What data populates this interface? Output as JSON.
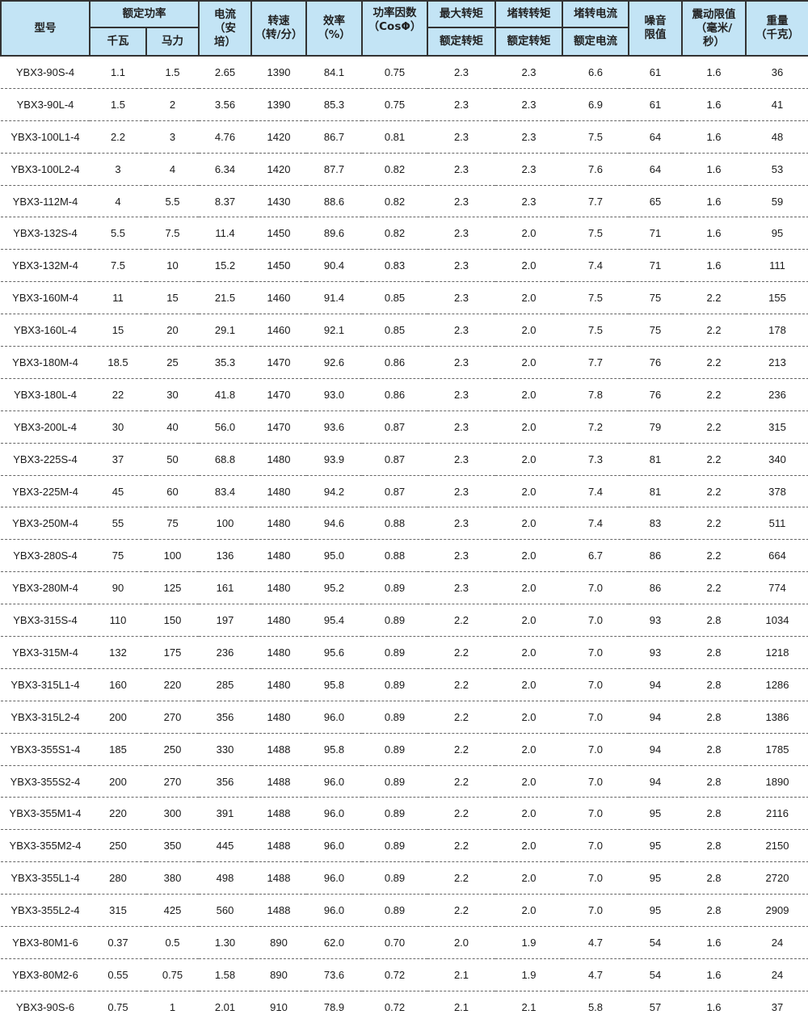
{
  "header": {
    "model": "型号",
    "rated_power": "额定功率",
    "kw": "千瓦",
    "hp": "马力",
    "current": "电流\n（安\n培）",
    "speed": "转速\n（转/分）",
    "efficiency": "效率\n（%）",
    "power_factor": "功率因数\n（CosΦ）",
    "max_torque": "最大转矩",
    "stall_torque": "堵转转矩",
    "stall_current": "堵转电流",
    "rated_torque_1": "额定转矩",
    "rated_torque_2": "额定转矩",
    "rated_current": "额定电流",
    "noise": "噪音\n限值",
    "vibration": "震动限值\n（毫米/\n秒）",
    "weight": "重量\n（千克）"
  },
  "rows": [
    [
      "YBX3-90S-4",
      "1.1",
      "1.5",
      "2.65",
      "1390",
      "84.1",
      "0.75",
      "2.3",
      "2.3",
      "6.6",
      "61",
      "1.6",
      "36"
    ],
    [
      "YBX3-90L-4",
      "1.5",
      "2",
      "3.56",
      "1390",
      "85.3",
      "0.75",
      "2.3",
      "2.3",
      "6.9",
      "61",
      "1.6",
      "41"
    ],
    [
      "YBX3-100L1-4",
      "2.2",
      "3",
      "4.76",
      "1420",
      "86.7",
      "0.81",
      "2.3",
      "2.3",
      "7.5",
      "64",
      "1.6",
      "48"
    ],
    [
      "YBX3-100L2-4",
      "3",
      "4",
      "6.34",
      "1420",
      "87.7",
      "0.82",
      "2.3",
      "2.3",
      "7.6",
      "64",
      "1.6",
      "53"
    ],
    [
      "YBX3-112M-4",
      "4",
      "5.5",
      "8.37",
      "1430",
      "88.6",
      "0.82",
      "2.3",
      "2.3",
      "7.7",
      "65",
      "1.6",
      "59"
    ],
    [
      "YBX3-132S-4",
      "5.5",
      "7.5",
      "11.4",
      "1450",
      "89.6",
      "0.82",
      "2.3",
      "2.0",
      "7.5",
      "71",
      "1.6",
      "95"
    ],
    [
      "YBX3-132M-4",
      "7.5",
      "10",
      "15.2",
      "1450",
      "90.4",
      "0.83",
      "2.3",
      "2.0",
      "7.4",
      "71",
      "1.6",
      "111"
    ],
    [
      "YBX3-160M-4",
      "11",
      "15",
      "21.5",
      "1460",
      "91.4",
      "0.85",
      "2.3",
      "2.0",
      "7.5",
      "75",
      "2.2",
      "155"
    ],
    [
      "YBX3-160L-4",
      "15",
      "20",
      "29.1",
      "1460",
      "92.1",
      "0.85",
      "2.3",
      "2.0",
      "7.5",
      "75",
      "2.2",
      "178"
    ],
    [
      "YBX3-180M-4",
      "18.5",
      "25",
      "35.3",
      "1470",
      "92.6",
      "0.86",
      "2.3",
      "2.0",
      "7.7",
      "76",
      "2.2",
      "213"
    ],
    [
      "YBX3-180L-4",
      "22",
      "30",
      "41.8",
      "1470",
      "93.0",
      "0.86",
      "2.3",
      "2.0",
      "7.8",
      "76",
      "2.2",
      "236"
    ],
    [
      "YBX3-200L-4",
      "30",
      "40",
      "56.0",
      "1470",
      "93.6",
      "0.87",
      "2.3",
      "2.0",
      "7.2",
      "79",
      "2.2",
      "315"
    ],
    [
      "YBX3-225S-4",
      "37",
      "50",
      "68.8",
      "1480",
      "93.9",
      "0.87",
      "2.3",
      "2.0",
      "7.3",
      "81",
      "2.2",
      "340"
    ],
    [
      "YBX3-225M-4",
      "45",
      "60",
      "83.4",
      "1480",
      "94.2",
      "0.87",
      "2.3",
      "2.0",
      "7.4",
      "81",
      "2.2",
      "378"
    ],
    [
      "YBX3-250M-4",
      "55",
      "75",
      "100",
      "1480",
      "94.6",
      "0.88",
      "2.3",
      "2.0",
      "7.4",
      "83",
      "2.2",
      "511"
    ],
    [
      "YBX3-280S-4",
      "75",
      "100",
      "136",
      "1480",
      "95.0",
      "0.88",
      "2.3",
      "2.0",
      "6.7",
      "86",
      "2.2",
      "664"
    ],
    [
      "YBX3-280M-4",
      "90",
      "125",
      "161",
      "1480",
      "95.2",
      "0.89",
      "2.3",
      "2.0",
      "7.0",
      "86",
      "2.2",
      "774"
    ],
    [
      "YBX3-315S-4",
      "110",
      "150",
      "197",
      "1480",
      "95.4",
      "0.89",
      "2.2",
      "2.0",
      "7.0",
      "93",
      "2.8",
      "1034"
    ],
    [
      "YBX3-315M-4",
      "132",
      "175",
      "236",
      "1480",
      "95.6",
      "0.89",
      "2.2",
      "2.0",
      "7.0",
      "93",
      "2.8",
      "1218"
    ],
    [
      "YBX3-315L1-4",
      "160",
      "220",
      "285",
      "1480",
      "95.8",
      "0.89",
      "2.2",
      "2.0",
      "7.0",
      "94",
      "2.8",
      "1286"
    ],
    [
      "YBX3-315L2-4",
      "200",
      "270",
      "356",
      "1480",
      "96.0",
      "0.89",
      "2.2",
      "2.0",
      "7.0",
      "94",
      "2.8",
      "1386"
    ],
    [
      "YBX3-355S1-4",
      "185",
      "250",
      "330",
      "1488",
      "95.8",
      "0.89",
      "2.2",
      "2.0",
      "7.0",
      "94",
      "2.8",
      "1785"
    ],
    [
      "YBX3-355S2-4",
      "200",
      "270",
      "356",
      "1488",
      "96.0",
      "0.89",
      "2.2",
      "2.0",
      "7.0",
      "94",
      "2.8",
      "1890"
    ],
    [
      "YBX3-355M1-4",
      "220",
      "300",
      "391",
      "1488",
      "96.0",
      "0.89",
      "2.2",
      "2.0",
      "7.0",
      "95",
      "2.8",
      "2116"
    ],
    [
      "YBX3-355M2-4",
      "250",
      "350",
      "445",
      "1488",
      "96.0",
      "0.89",
      "2.2",
      "2.0",
      "7.0",
      "95",
      "2.8",
      "2150"
    ],
    [
      "YBX3-355L1-4",
      "280",
      "380",
      "498",
      "1488",
      "96.0",
      "0.89",
      "2.2",
      "2.0",
      "7.0",
      "95",
      "2.8",
      "2720"
    ],
    [
      "YBX3-355L2-4",
      "315",
      "425",
      "560",
      "1488",
      "96.0",
      "0.89",
      "2.2",
      "2.0",
      "7.0",
      "95",
      "2.8",
      "2909"
    ],
    [
      "YBX3-80M1-6",
      "0.37",
      "0.5",
      "1.30",
      "890",
      "62.0",
      "0.70",
      "2.0",
      "1.9",
      "4.7",
      "54",
      "1.6",
      "24"
    ],
    [
      "YBX3-80M2-6",
      "0.55",
      "0.75",
      "1.58",
      "890",
      "73.6",
      "0.72",
      "2.1",
      "1.9",
      "4.7",
      "54",
      "1.6",
      "24"
    ],
    [
      "YBX3-90S-6",
      "0.75",
      "1",
      "2.01",
      "910",
      "78.9",
      "0.72",
      "2.1",
      "2.1",
      "5.8",
      "57",
      "1.6",
      "37"
    ]
  ],
  "colors": {
    "header_bg": "#c3e4f5",
    "border": "#333333"
  }
}
